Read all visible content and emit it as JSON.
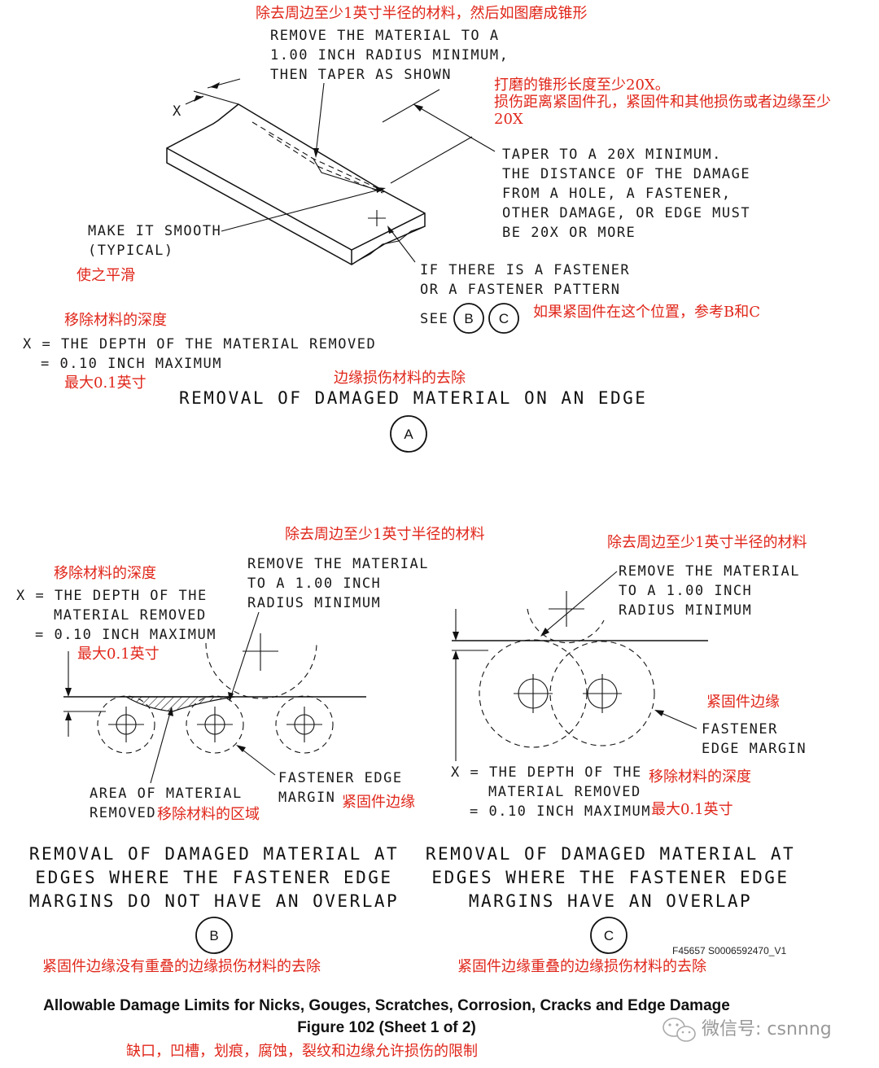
{
  "detail_a": {
    "zh_top": "除去周边至少1英寸半径的材料，然后如图磨成锥形",
    "remove_note": [
      "REMOVE THE MATERIAL TO A",
      "1.00 INCH RADIUS MINIMUM,",
      "THEN TAPER AS SHOWN"
    ],
    "x_label": "X",
    "zh_taper": [
      "打磨的锥形长度至少20X。",
      "损伤距离紧固件孔，紧固件和其他损伤或者边缘至少",
      "20X"
    ],
    "taper_note": [
      "TAPER TO A 20X MINIMUM.",
      "THE DISTANCE OF THE DAMAGE",
      "FROM A HOLE, A FASTENER,",
      "OTHER DAMAGE, OR EDGE MUST",
      "BE 20X OR MORE"
    ],
    "smooth_note": [
      "MAKE IT SMOOTH",
      "(TYPICAL)"
    ],
    "zh_smooth": "使之平滑",
    "fastener_note": [
      "IF THERE IS A FASTENER",
      "OR A FASTENER PATTERN"
    ],
    "see_label": "SEE",
    "see_b": "B",
    "see_c": "C",
    "zh_fastener": "如果紧固件在这个位置，参考B和C",
    "zh_depth": "移除材料的深度",
    "x_def": [
      "X = THE DEPTH OF THE MATERIAL REMOVED",
      "= 0.10 INCH MAXIMUM"
    ],
    "zh_max": "最大0.1英寸",
    "zh_title": "边缘损伤材料的去除",
    "title": "REMOVAL OF DAMAGED MATERIAL ON AN EDGE",
    "badge": "A"
  },
  "detail_b": {
    "zh_remove": "除去周边至少1英寸半径的材料",
    "zh_depth": "移除材料的深度",
    "x_def": [
      "X = THE DEPTH OF THE",
      "MATERIAL REMOVED",
      "= 0.10 INCH MAXIMUM"
    ],
    "zh_max": "最大0.1英寸",
    "remove_note": [
      "REMOVE THE MATERIAL",
      "TO A 1.00 INCH",
      "RADIUS MINIMUM"
    ],
    "area_note": [
      "AREA OF MATERIAL",
      "REMOVED"
    ],
    "zh_area": "移除材料的区域",
    "margin_note": [
      "FASTENER EDGE",
      "MARGIN"
    ],
    "zh_margin": "紧固件边缘",
    "title": [
      "REMOVAL OF DAMAGED MATERIAL AT",
      "EDGES WHERE THE FASTENER EDGE",
      "MARGINS DO NOT HAVE AN OVERLAP"
    ],
    "badge": "B",
    "zh_title": "紧固件边缘没有重叠的边缘损伤材料的去除"
  },
  "detail_c": {
    "zh_remove": "除去周边至少1英寸半径的材料",
    "remove_note": [
      "REMOVE THE MATERIAL",
      "TO A 1.00 INCH",
      "RADIUS MINIMUM"
    ],
    "zh_margin": "紧固件边缘",
    "margin_note": [
      "FASTENER",
      "EDGE MARGIN"
    ],
    "x_def": [
      "X = THE DEPTH OF THE",
      "MATERIAL REMOVED",
      "= 0.10 INCH MAXIMUM"
    ],
    "zh_depth": "移除材料的深度",
    "zh_max": "最大0.1英寸",
    "title": [
      "REMOVAL OF DAMAGED MATERIAL AT",
      "EDGES WHERE THE FASTENER EDGE",
      "MARGINS HAVE AN OVERLAP"
    ],
    "badge": "C",
    "zh_title": "紧固件边缘重叠的边缘损伤材料的去除"
  },
  "figure": {
    "ref": "F45657 S0006592470_V1",
    "caption": "Allowable Damage Limits for Nicks, Gouges, Scratches, Corrosion, Cracks and Edge Damage",
    "number": "Figure 102  (Sheet 1 of 2)",
    "zh_caption": "缺口，凹槽，划痕，腐蚀，裂纹和边缘允许损伤的限制"
  },
  "watermark": {
    "icon": "wechat-icon",
    "text": "微信号: csnnng"
  }
}
